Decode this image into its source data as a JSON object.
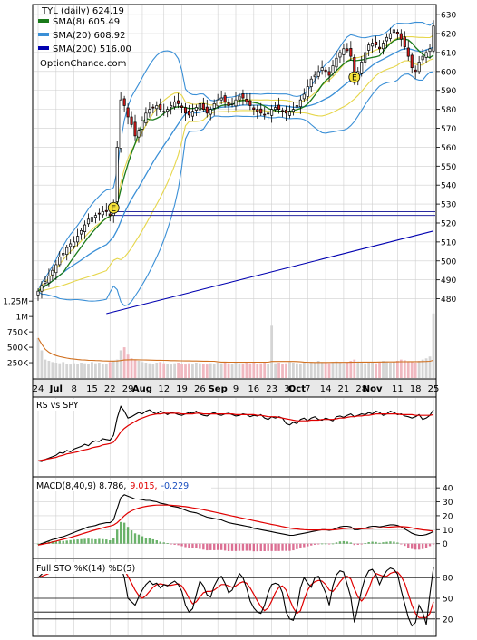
{
  "chart_data": [
    {
      "type": "candlestick",
      "title": "TYL (daily) 624.19",
      "source": "OptionChance.com",
      "legend": [
        {
          "label": "SMA(8) 605.49",
          "color": "#1a7a1a"
        },
        {
          "label": "SMA(20) 608.92",
          "color": "#3a8fd6"
        },
        {
          "label": "SMA(200) 516.00",
          "color": "#0000b0"
        }
      ],
      "ylim": [
        475,
        632
      ],
      "y_ticks": [
        480,
        490,
        500,
        510,
        520,
        530,
        540,
        550,
        560,
        570,
        580,
        590,
        600,
        610,
        620,
        630
      ],
      "x_tick_labels": [
        "24",
        "Jul",
        "8",
        "15",
        "22",
        "29",
        "Aug",
        "12",
        "19",
        "26",
        "Sep",
        "9",
        "16",
        "23",
        "30",
        "Oct",
        "7",
        "14",
        "21",
        "28",
        "Nov",
        "11",
        "18",
        "25"
      ],
      "x_tick_days": [
        0,
        5,
        10,
        15,
        20,
        25,
        29,
        35,
        40,
        45,
        50,
        55,
        60,
        65,
        70,
        72,
        75,
        80,
        85,
        90,
        93,
        100,
        105,
        110
      ],
      "earnings_markers": [
        {
          "day": 21,
          "price": 528,
          "label": "E"
        },
        {
          "day": 88,
          "price": 597,
          "label": "E"
        }
      ],
      "horizontal_lines": [
        526,
        524
      ],
      "volume_ticks": [
        "1.25M",
        "1M",
        "750K",
        "500K",
        "250K"
      ],
      "volume_tick_values": [
        1250,
        1000,
        750,
        500,
        250
      ],
      "close": [
        484,
        487,
        489,
        492,
        495,
        498,
        502,
        504,
        507,
        509,
        510,
        513,
        516,
        519,
        522,
        523,
        524,
        525,
        526,
        526,
        524,
        530,
        560,
        585,
        582,
        576,
        572,
        566,
        569,
        574,
        578,
        580,
        581,
        582,
        580,
        579,
        580,
        582,
        584,
        583,
        581,
        578,
        577,
        579,
        581,
        583,
        580,
        578,
        580,
        583,
        585,
        586,
        584,
        582,
        583,
        585,
        587,
        586,
        584,
        582,
        580,
        579,
        578,
        577,
        578,
        580,
        581,
        580,
        579,
        578,
        579,
        580,
        582,
        585,
        588,
        592,
        596,
        598,
        600,
        602,
        600,
        598,
        603,
        607,
        610,
        612,
        611,
        608,
        596,
        600,
        605,
        610,
        614,
        615,
        614,
        612,
        615,
        618,
        620,
        622,
        620,
        617,
        613,
        608,
        602,
        600,
        605,
        608,
        610,
        612,
        624
      ],
      "volume_k": [
        650,
        450,
        300,
        280,
        260,
        250,
        240,
        260,
        230,
        220,
        240,
        230,
        250,
        240,
        230,
        260,
        240,
        250,
        220,
        230,
        260,
        280,
        300,
        450,
        500,
        380,
        320,
        300,
        280,
        260,
        250,
        240,
        230,
        250,
        260,
        240,
        230,
        220,
        240,
        250,
        230,
        220,
        240,
        230,
        250,
        240,
        230,
        220,
        240,
        230,
        250,
        240,
        260,
        240,
        230,
        250,
        240,
        230,
        250,
        240,
        260,
        230,
        240,
        250,
        230,
        850,
        240,
        250,
        230,
        240,
        260,
        250,
        240,
        230,
        250,
        240,
        260,
        250,
        280,
        260,
        250,
        240,
        260,
        270,
        250,
        240,
        260,
        280,
        300,
        270,
        250,
        240,
        260,
        250,
        240,
        260,
        280,
        270,
        250,
        260,
        280,
        300,
        290,
        270,
        260,
        250,
        280,
        300,
        320,
        350,
        1050
      ]
    },
    {
      "type": "line",
      "title": "RS vs SPY",
      "series": [
        {
          "name": "RS vs SPY",
          "color": "#000000"
        },
        {
          "name": "",
          "color": "#e00000"
        }
      ],
      "rs": [
        0.18,
        0.17,
        0.2,
        0.22,
        0.24,
        0.26,
        0.3,
        0.29,
        0.33,
        0.31,
        0.35,
        0.37,
        0.39,
        0.42,
        0.4,
        0.45,
        0.47,
        0.46,
        0.5,
        0.49,
        0.48,
        0.55,
        0.8,
        0.97,
        0.9,
        0.8,
        0.82,
        0.85,
        0.88,
        0.86,
        0.9,
        0.92,
        0.88,
        0.86,
        0.9,
        0.88,
        0.85,
        0.88,
        0.87,
        0.85,
        0.84,
        0.86,
        0.88,
        0.87,
        0.9,
        0.86,
        0.84,
        0.83,
        0.86,
        0.88,
        0.85,
        0.84,
        0.86,
        0.87,
        0.85,
        0.83,
        0.84,
        0.86,
        0.85,
        0.82,
        0.84,
        0.83,
        0.85,
        0.8,
        0.78,
        0.82,
        0.8,
        0.82,
        0.8,
        0.72,
        0.7,
        0.74,
        0.72,
        0.78,
        0.8,
        0.76,
        0.8,
        0.82,
        0.78,
        0.77,
        0.8,
        0.78,
        0.76,
        0.82,
        0.83,
        0.81,
        0.84,
        0.86,
        0.82,
        0.84,
        0.86,
        0.85,
        0.88,
        0.86,
        0.9,
        0.88,
        0.84,
        0.86,
        0.9,
        0.88,
        0.85,
        0.86,
        0.83,
        0.82,
        0.8,
        0.82,
        0.85,
        0.78,
        0.8,
        0.84,
        0.92
      ],
      "signal": [
        0.18,
        0.19,
        0.2,
        0.21,
        0.22,
        0.23,
        0.25,
        0.26,
        0.28,
        0.29,
        0.3,
        0.31,
        0.33,
        0.34,
        0.35,
        0.37,
        0.38,
        0.39,
        0.41,
        0.42,
        0.43,
        0.45,
        0.52,
        0.6,
        0.65,
        0.69,
        0.72,
        0.75,
        0.78,
        0.8,
        0.82,
        0.84,
        0.85,
        0.86,
        0.86,
        0.87,
        0.87,
        0.87,
        0.87,
        0.87,
        0.86,
        0.86,
        0.86,
        0.86,
        0.87,
        0.87,
        0.86,
        0.86,
        0.86,
        0.86,
        0.86,
        0.86,
        0.86,
        0.86,
        0.86,
        0.85,
        0.85,
        0.85,
        0.85,
        0.85,
        0.85,
        0.84,
        0.84,
        0.83,
        0.82,
        0.82,
        0.82,
        0.81,
        0.8,
        0.79,
        0.78,
        0.77,
        0.76,
        0.76,
        0.76,
        0.76,
        0.77,
        0.77,
        0.77,
        0.78,
        0.78,
        0.78,
        0.78,
        0.79,
        0.8,
        0.8,
        0.81,
        0.82,
        0.82,
        0.83,
        0.83,
        0.84,
        0.84,
        0.85,
        0.86,
        0.86,
        0.86,
        0.86,
        0.86,
        0.86,
        0.86,
        0.85,
        0.85,
        0.85,
        0.85,
        0.84,
        0.84,
        0.84,
        0.84,
        0.84,
        0.85
      ]
    },
    {
      "type": "line",
      "title_prefix": "MACD(8,40,9) 8.786,",
      "macd_value": "9.015,",
      "hist_value": "-0.229",
      "colors": {
        "macd": "#000000",
        "signal": "#e00000",
        "hist_pos": "#3a9a3a",
        "hist_neg": "#d04070",
        "value": "#e00000",
        "hist_label": "#1a4fbf"
      },
      "ylim": [
        -8,
        44
      ],
      "y_ticks": [
        40,
        30,
        20,
        10,
        0
      ],
      "macd": [
        -1,
        0,
        1,
        2,
        3,
        3.5,
        4.5,
        5,
        6,
        7,
        8,
        9,
        10,
        11,
        12,
        12.5,
        13,
        14,
        14.5,
        15,
        15,
        17,
        25,
        33,
        35,
        34,
        33,
        32,
        32,
        31.5,
        31,
        31,
        30.5,
        30,
        29,
        28.5,
        28,
        27,
        26.5,
        26,
        25,
        24,
        23,
        22.5,
        22,
        21,
        20,
        19,
        18.5,
        18,
        17.5,
        17,
        16,
        15,
        14.5,
        14,
        13.5,
        13,
        12.5,
        12,
        11,
        10.5,
        10,
        9.5,
        9,
        8.5,
        8,
        7.5,
        7,
        6.5,
        6,
        6,
        6.5,
        7,
        7.5,
        8,
        8.5,
        9,
        9.5,
        10,
        10,
        9.5,
        10,
        11,
        12,
        12.5,
        12.5,
        12,
        10,
        10,
        10.5,
        11,
        12,
        12.5,
        12.5,
        12,
        12.5,
        13,
        13.5,
        13.5,
        13,
        12,
        10.5,
        9,
        7.5,
        6.5,
        6,
        6,
        6.5,
        7.5,
        8.8
      ],
      "signal": [
        -1,
        -0.5,
        0,
        0.5,
        1.2,
        1.8,
        2.5,
        3.1,
        3.8,
        4.5,
        5.2,
        6,
        6.8,
        7.6,
        8.4,
        9.2,
        9.9,
        10.6,
        11.3,
        12,
        12.6,
        13.3,
        15,
        17.5,
        20,
        22,
        23.5,
        24.6,
        25.5,
        26.2,
        26.7,
        27.1,
        27.4,
        27.6,
        27.6,
        27.6,
        27.6,
        27.5,
        27.3,
        27.1,
        26.8,
        26.5,
        26.1,
        25.7,
        25.3,
        24.8,
        24.3,
        23.8,
        23.2,
        22.7,
        22.1,
        21.6,
        21,
        20.4,
        19.8,
        19.3,
        18.7,
        18.2,
        17.6,
        17.1,
        16.5,
        16,
        15.4,
        14.9,
        14.3,
        13.8,
        13.3,
        12.8,
        12.2,
        11.7,
        11.2,
        10.8,
        10.5,
        10.2,
        10,
        9.9,
        9.8,
        9.8,
        9.8,
        9.9,
        9.9,
        9.9,
        9.9,
        10.1,
        10.4,
        10.7,
        11,
        11.2,
        11,
        10.8,
        10.7,
        10.7,
        10.9,
        11.1,
        11.3,
        11.4,
        11.5,
        11.7,
        11.9,
        12.1,
        12.2,
        12.2,
        12.1,
        11.8,
        11.3,
        10.8,
        10.3,
        9.9,
        9.6,
        9.3,
        9
      ]
    },
    {
      "type": "line",
      "title": "Full STO %K(14) %D(5)",
      "ylim": [
        0,
        100
      ],
      "y_ticks": [
        80,
        50,
        20
      ],
      "grid_lines": [
        80,
        50,
        30,
        20
      ],
      "k": [
        80,
        85,
        90,
        88,
        92,
        94,
        90,
        93,
        95,
        92,
        94,
        96,
        95,
        97,
        94,
        93,
        95,
        96,
        94,
        92,
        88,
        90,
        95,
        96,
        80,
        50,
        45,
        40,
        52,
        62,
        70,
        75,
        70,
        72,
        65,
        70,
        68,
        72,
        75,
        70,
        60,
        40,
        30,
        35,
        55,
        75,
        68,
        55,
        52,
        68,
        78,
        82,
        72,
        58,
        62,
        74,
        86,
        80,
        65,
        46,
        36,
        30,
        28,
        40,
        58,
        70,
        72,
        70,
        58,
        30,
        20,
        18,
        35,
        65,
        80,
        72,
        66,
        80,
        82,
        70,
        58,
        40,
        68,
        84,
        90,
        88,
        70,
        52,
        15,
        38,
        62,
        80,
        90,
        92,
        84,
        70,
        82,
        90,
        94,
        92,
        85,
        62,
        42,
        22,
        10,
        15,
        40,
        30,
        12,
        55,
        95
      ],
      "d": [
        80,
        82,
        84,
        86,
        88,
        90,
        90,
        91,
        92,
        93,
        93,
        94,
        94,
        95,
        95,
        95,
        95,
        95,
        95,
        94,
        93,
        92,
        92,
        93,
        91,
        82,
        72,
        62,
        54,
        50,
        54,
        60,
        66,
        70,
        71,
        70,
        69,
        69,
        70,
        71,
        68,
        60,
        50,
        42,
        45,
        52,
        58,
        60,
        60,
        62,
        66,
        70,
        70,
        68,
        66,
        68,
        72,
        74,
        72,
        65,
        56,
        46,
        38,
        32,
        36,
        46,
        58,
        66,
        68,
        62,
        48,
        36,
        28,
        32,
        48,
        62,
        70,
        74,
        76,
        75,
        70,
        62,
        60,
        66,
        74,
        80,
        82,
        78,
        64,
        52,
        46,
        52,
        64,
        78,
        86,
        84,
        82,
        82,
        86,
        88,
        88,
        82,
        72,
        56,
        40,
        28,
        22,
        22,
        22,
        28,
        45
      ]
    }
  ]
}
